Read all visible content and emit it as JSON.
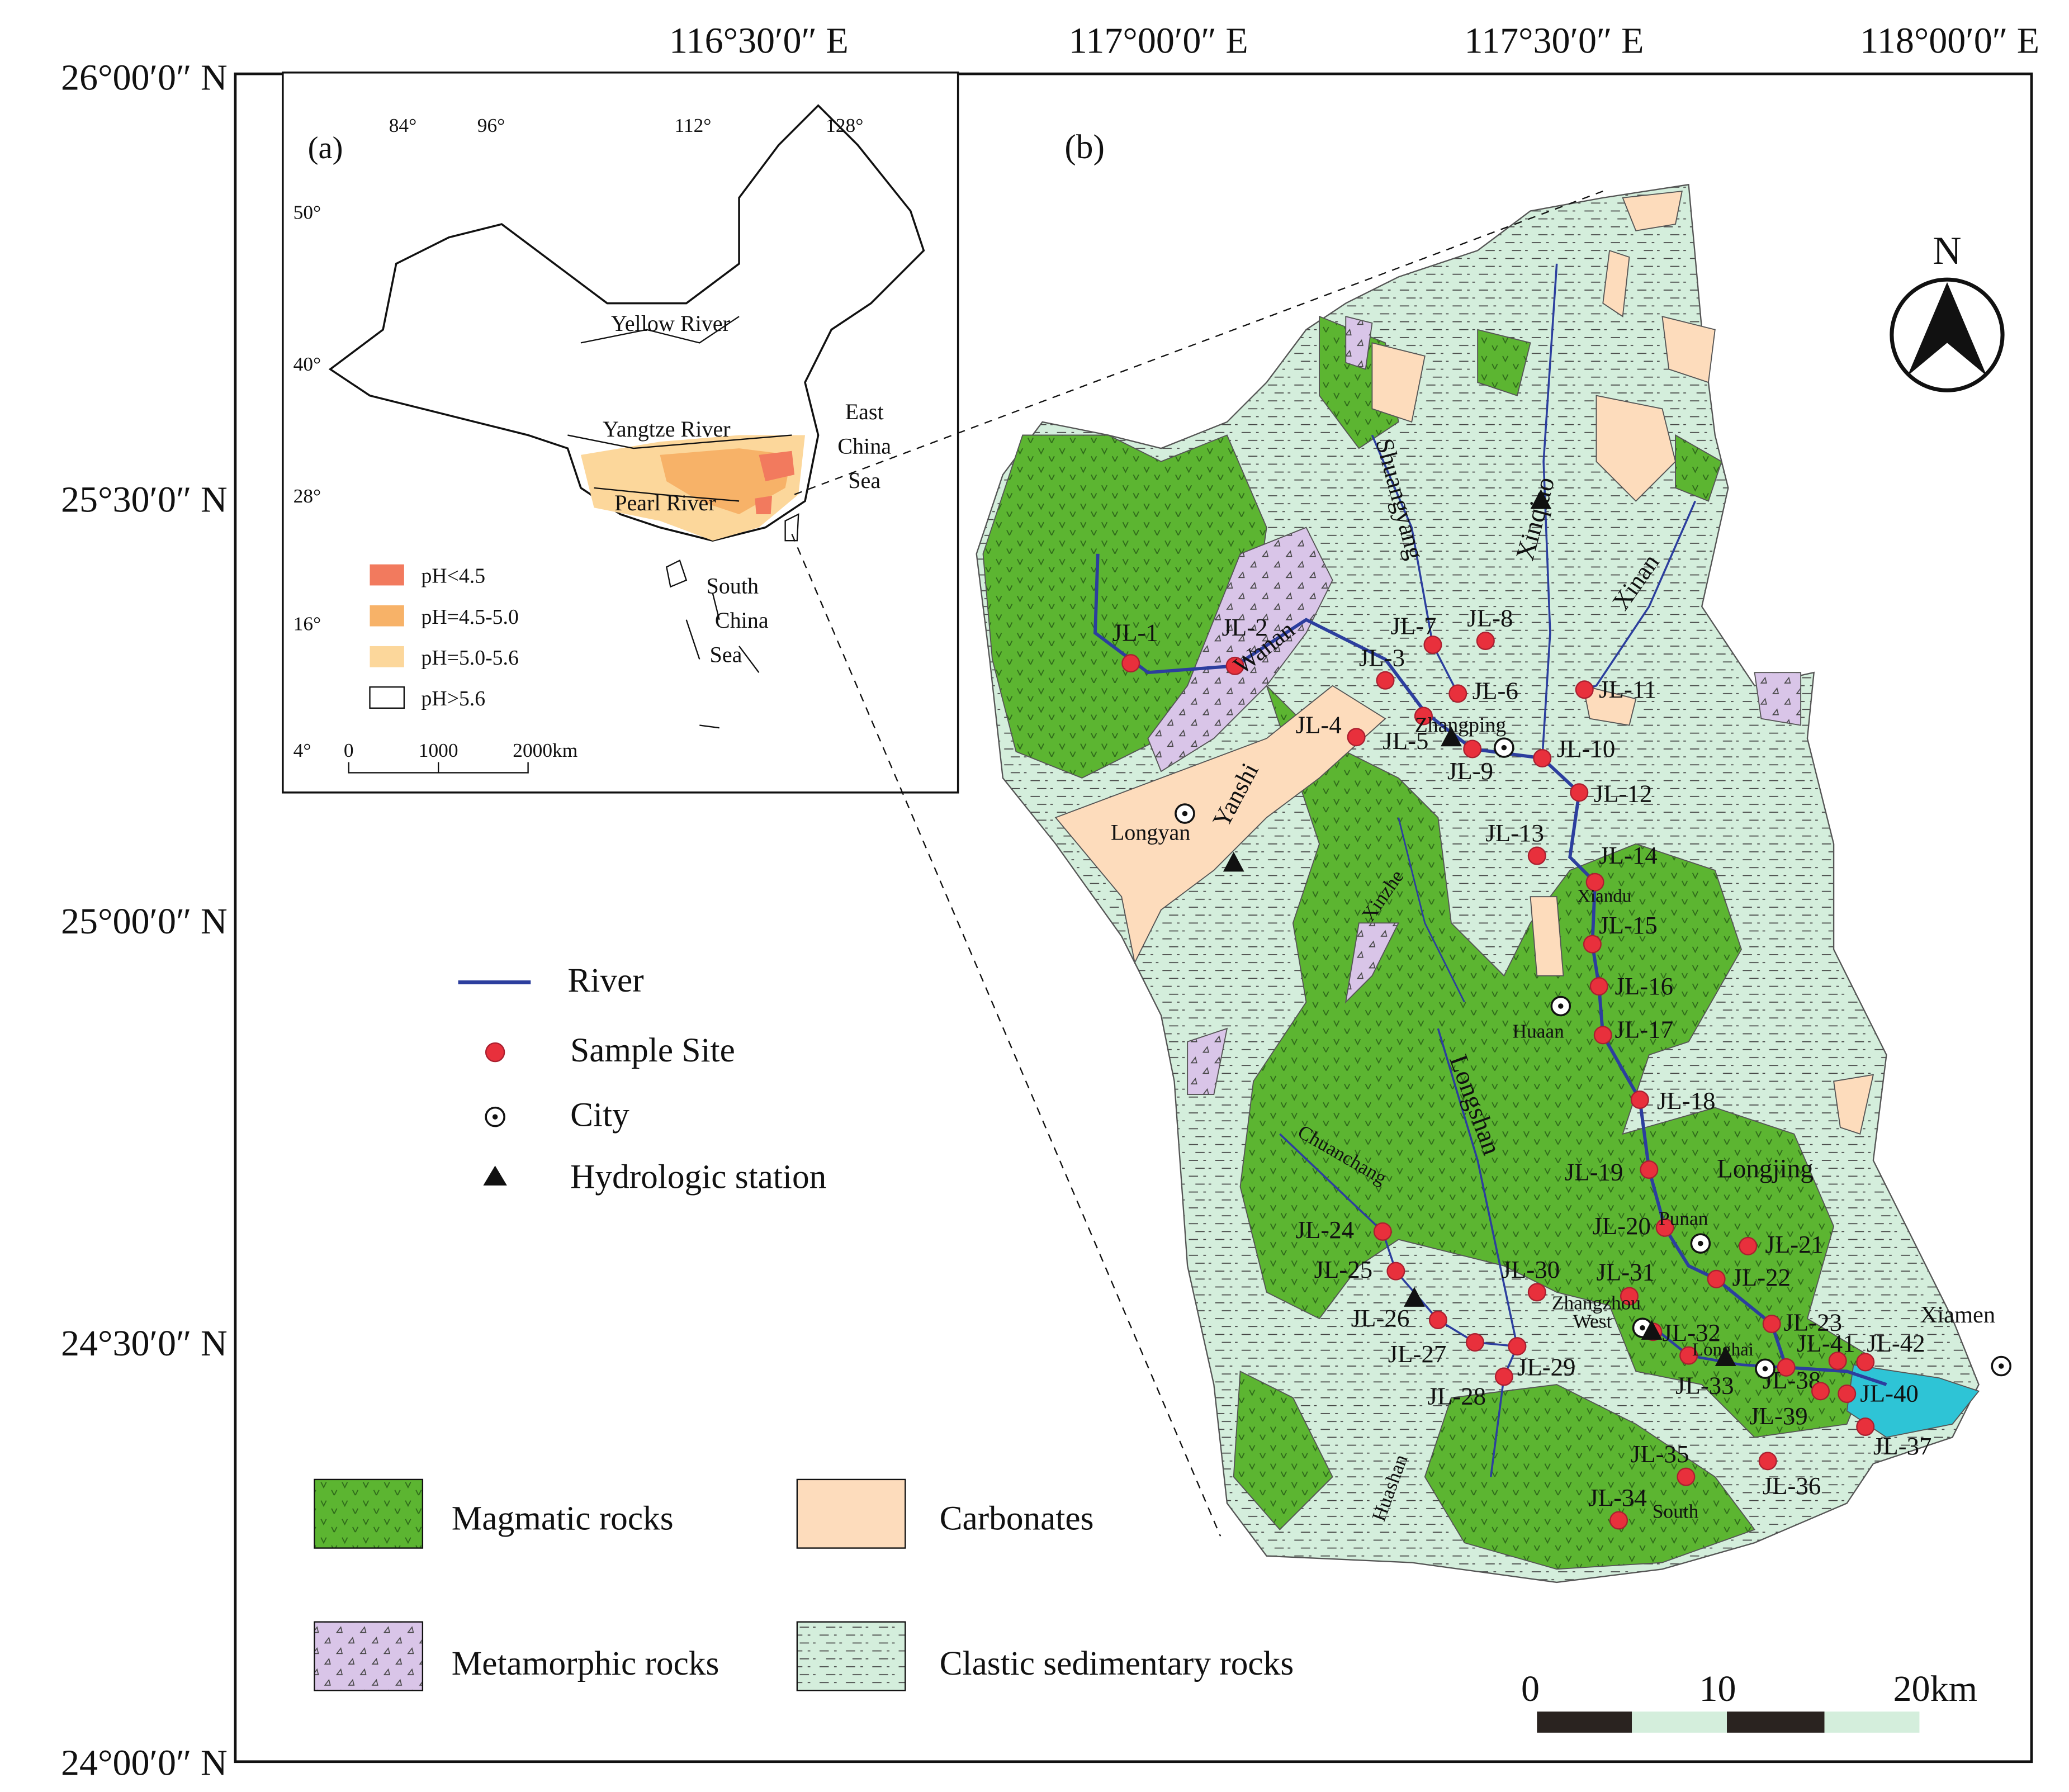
{
  "top_axis_labels": [
    "116°30′0″ E",
    "117°00′0″ E",
    "117°30′0″ E",
    "118°00′0″ E"
  ],
  "left_axis_labels": [
    "26°00′0″ N",
    "25°30′0″ N",
    "25°00′0″ N",
    "24°30′0″ N",
    "24°00′0″ N"
  ],
  "inset": {
    "panel_label": "(a)",
    "lon_labels": [
      "84°",
      "96°",
      "112°",
      "128°"
    ],
    "lat_labels": [
      "50°",
      "40°",
      "28°",
      "16°",
      "4°"
    ],
    "places": [
      "Yellow River",
      "Yangtze River",
      "Pearl River"
    ],
    "east_china_sea": [
      "East",
      "China",
      "Sea"
    ],
    "south_china_sea": [
      "South",
      "China",
      "Sea"
    ],
    "legend": [
      "pH<4.5",
      "pH=4.5-5.0",
      "pH=5.0-5.6",
      "pH>5.6"
    ],
    "scale_labels": [
      "0",
      "1000",
      "2000km"
    ]
  },
  "main": {
    "panel_label": "(b)",
    "north": "N",
    "sites": [
      "JL-1",
      "JL-2",
      "JL-3",
      "JL-4",
      "JL-5",
      "JL-6",
      "JL-7",
      "JL-8",
      "JL-9",
      "JL-10",
      "JL-11",
      "JL-12",
      "JL-13",
      "JL-14",
      "JL-15",
      "JL-16",
      "JL-17",
      "JL-18",
      "JL-19",
      "JL-20",
      "JL-21",
      "JL-22",
      "JL-23",
      "JL-24",
      "JL-25",
      "JL-26",
      "JL-27",
      "JL-28",
      "JL-29",
      "JL-30",
      "JL-31",
      "JL-32",
      "JL-33",
      "JL-34",
      "JL-35",
      "JL-36",
      "JL-37",
      "JL-38",
      "JL-39",
      "JL-40",
      "JL-41",
      "JL-42"
    ],
    "places": [
      "Zhangping",
      "Longyan",
      "Huaan",
      "Punan",
      "Zhangzhou",
      "Longhai",
      "Xiamen",
      "Yanshi",
      "Wanan",
      "Shuangyang",
      "Xinqiao",
      "Xinan",
      "Xinzhe",
      "Longshan",
      "Chuanchang",
      "Xiandu",
      "Longjing",
      "West",
      "South",
      "Huashan"
    ],
    "scale_labels": [
      "0",
      "10",
      "20km"
    ]
  },
  "legend": {
    "symbols": [
      "River",
      "Sample Site",
      "City",
      "Hydrologic station"
    ],
    "rock_types": [
      "Magmatic rocks",
      "Carbonates",
      "Metamorphic rocks",
      "Clastic sedimentary rocks"
    ]
  }
}
